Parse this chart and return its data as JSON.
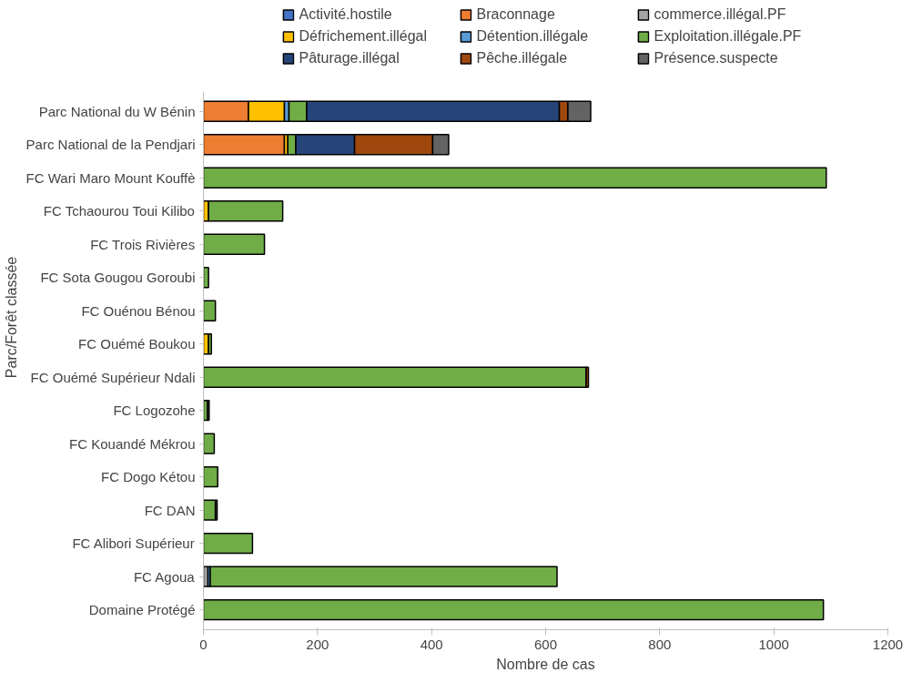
{
  "chart_data": {
    "type": "bar",
    "orientation": "horizontal",
    "stacked": true,
    "xlabel": "Nombre de cas",
    "ylabel": "Parc/Forêt classée",
    "xlim": [
      0,
      1200
    ],
    "xticks": [
      0,
      200,
      400,
      600,
      800,
      1000,
      1200
    ],
    "grid": false,
    "legend": "top",
    "categories": [
      "Parc National du W Bénin",
      "Parc National de la Pendjari",
      "FC Wari Maro Mount Kouffè",
      "FC Tchaourou Toui Kilibo",
      "FC Trois Rivières",
      "FC Sota Gougou Goroubi",
      "FC Ouénou Bénou",
      "FC Ouémé Boukou",
      "FC Ouémé Supérieur Ndali",
      "FC Logozohe",
      "FC Kouandé Mékrou",
      "FC Dogo Kétou",
      "FC DAN",
      "FC Alibori Supérieur",
      "FC Agoua",
      "Domaine Protégé"
    ],
    "series": [
      {
        "name": "Activité.hostile",
        "color": "#4472c4",
        "values": [
          null,
          null,
          null,
          null,
          null,
          null,
          null,
          null,
          null,
          null,
          null,
          null,
          null,
          null,
          null,
          null
        ]
      },
      {
        "name": "Braconnage",
        "color": "#ed7d31",
        "values": [
          79,
          142,
          null,
          null,
          null,
          null,
          null,
          null,
          null,
          null,
          null,
          null,
          null,
          null,
          null,
          null
        ]
      },
      {
        "name": "commerce.illégal.PF",
        "color": "#a5a5a5",
        "values": [
          null,
          null,
          null,
          null,
          null,
          null,
          null,
          null,
          null,
          null,
          null,
          null,
          null,
          null,
          8,
          null
        ]
      },
      {
        "name": "Défrichement.illégal",
        "color": "#ffc000",
        "values": [
          63,
          6,
          null,
          9,
          null,
          null,
          null,
          9,
          null,
          null,
          null,
          null,
          null,
          null,
          null,
          null
        ]
      },
      {
        "name": "Détention.illégale",
        "color": "#5b9bd5",
        "values": [
          8,
          null,
          null,
          null,
          null,
          null,
          null,
          null,
          null,
          null,
          null,
          null,
          null,
          null,
          4,
          null
        ]
      },
      {
        "name": "Exploitation.illégale.PF",
        "color": "#70ad47",
        "values": [
          31,
          14,
          1092,
          130,
          107,
          9,
          21,
          5,
          671,
          7,
          19,
          25,
          21,
          86,
          608,
          1087
        ]
      },
      {
        "name": "Pâturage.illégal",
        "color": "#264478",
        "values": [
          443,
          103,
          null,
          null,
          null,
          null,
          null,
          null,
          null,
          null,
          null,
          null,
          null,
          null,
          null,
          null
        ]
      },
      {
        "name": "Pêche.illégale",
        "color": "#9e480e",
        "values": [
          15,
          137,
          null,
          null,
          null,
          null,
          null,
          null,
          4,
          null,
          null,
          null,
          null,
          null,
          null,
          null
        ]
      },
      {
        "name": "Présence.suspecte",
        "color": "#636363",
        "values": [
          40,
          28,
          null,
          null,
          null,
          null,
          null,
          null,
          null,
          3,
          null,
          null,
          3,
          null,
          null,
          null
        ]
      }
    ]
  }
}
